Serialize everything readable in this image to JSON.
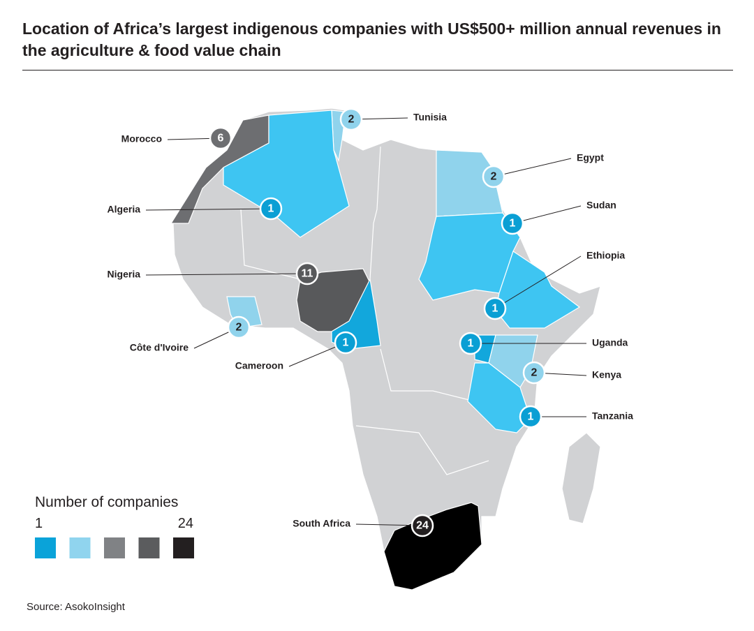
{
  "title": "Location of Africa’s largest indigenous companies with US$500+ million annual revenues in the agriculture & food value chain",
  "countries": [
    {
      "name": "Tunisia",
      "count": 2,
      "color": "#90d3ec"
    },
    {
      "name": "Morocco",
      "count": 6,
      "color": "#6d6e71"
    },
    {
      "name": "Egypt",
      "count": 2,
      "color": "#90d3ec"
    },
    {
      "name": "Algeria",
      "count": 1,
      "color": "#3ec5f2"
    },
    {
      "name": "Sudan",
      "count": 1,
      "color": "#3ec5f2"
    },
    {
      "name": "Nigeria",
      "count": 11,
      "color": "#58595b"
    },
    {
      "name": "Ethiopia",
      "count": 1,
      "color": "#3ec5f2"
    },
    {
      "name": "Côte d'Ivoire",
      "count": 2,
      "color": "#90d3ec"
    },
    {
      "name": "Cameroon",
      "count": 1,
      "color": "#12a7dc"
    },
    {
      "name": "Uganda",
      "count": 1,
      "color": "#12a7dc"
    },
    {
      "name": "Kenya",
      "count": 2,
      "color": "#90d3ec"
    },
    {
      "name": "Tanzania",
      "count": 1,
      "color": "#3ec5f2"
    },
    {
      "name": "South Africa",
      "count": 24,
      "color": "#000000"
    }
  ],
  "legend": {
    "title": "Number of companies",
    "min_label": "1",
    "max_label": "24",
    "colors": [
      "#0aa3d9",
      "#90d4ee",
      "#808285",
      "#5b5c5e",
      "#231f20"
    ]
  },
  "source": "Source: AsokoInsight"
}
